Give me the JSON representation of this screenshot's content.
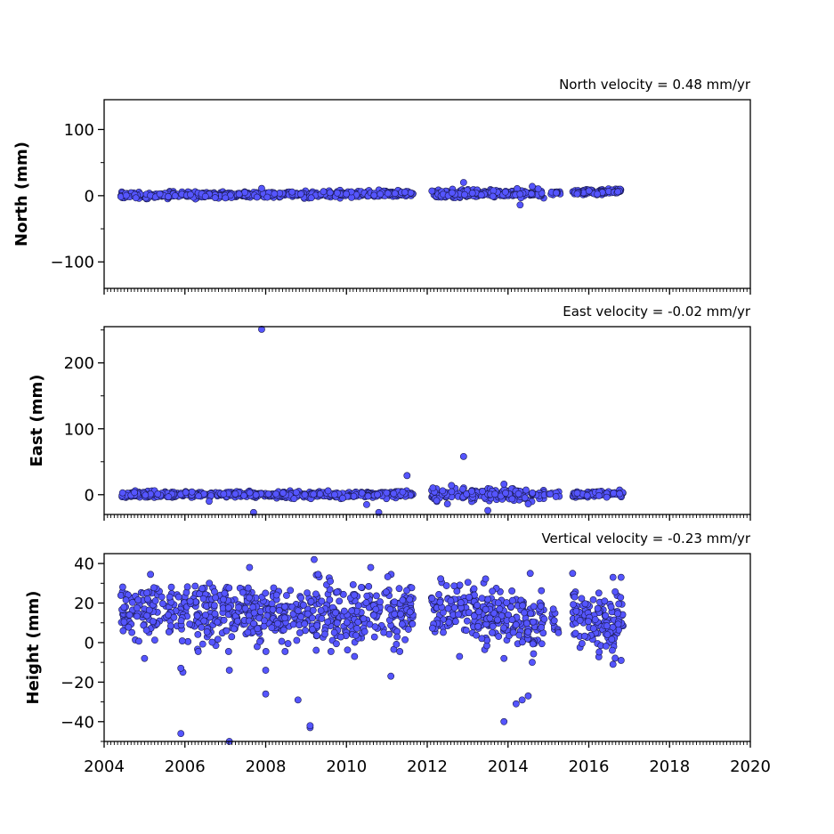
{
  "colors": {
    "marker_fill": "#5555ff",
    "marker_edge": "#1a1a4d",
    "axes": "#000000"
  },
  "x_axis": {
    "range": [
      2004,
      2020
    ],
    "ticks": [
      2004,
      2006,
      2008,
      2010,
      2012,
      2014,
      2016,
      2018,
      2020
    ],
    "tick_labels": [
      "2004",
      "2006",
      "2008",
      "2010",
      "2012",
      "2014",
      "2016",
      "2018",
      "2020"
    ]
  },
  "chart_data": [
    {
      "type": "scatter",
      "title": "North velocity = 0.48 mm/yr",
      "ylabel": "North (mm)",
      "ylim": [
        -140,
        145
      ],
      "yticks": [
        100,
        0,
        -100
      ],
      "ytick_labels": [
        "100",
        "0",
        "−100"
      ],
      "seed": 11,
      "segments": [
        {
          "x": [
            2004.4,
            2011.65
          ],
          "y_start": 0,
          "y_end": 3,
          "spread": 2.3,
          "count": 520
        },
        {
          "x": [
            2012.1,
            2014.9
          ],
          "y_start": 3,
          "y_end": 4,
          "spread": 3,
          "count": 210
        },
        {
          "x": [
            2015.0,
            2015.3
          ],
          "y_start": 3,
          "y_end": 3,
          "spread": 2,
          "count": 10
        },
        {
          "x": [
            2015.6,
            2016.85
          ],
          "y_start": 5,
          "y_end": 7,
          "spread": 2,
          "count": 110
        }
      ],
      "outliers": [
        {
          "x": 2012.9,
          "y": 20
        },
        {
          "x": 2014.3,
          "y": -14
        },
        {
          "x": 2007.9,
          "y": 11
        },
        {
          "x": 2014.6,
          "y": 14
        }
      ]
    },
    {
      "type": "scatter",
      "title": "East velocity = -0.02 mm/yr",
      "ylabel": "East (mm)",
      "ylim": [
        -30,
        255
      ],
      "yticks": [
        200,
        100,
        0
      ],
      "ytick_labels": [
        "200",
        "100",
        "0"
      ],
      "seed": 23,
      "segments": [
        {
          "x": [
            2004.4,
            2011.65
          ],
          "y_start": 0,
          "y_end": 0,
          "spread": 2.3,
          "count": 520
        },
        {
          "x": [
            2012.1,
            2014.9
          ],
          "y_start": 0,
          "y_end": 0,
          "spread": 4,
          "count": 210
        },
        {
          "x": [
            2015.0,
            2015.3
          ],
          "y_start": 0,
          "y_end": 0,
          "spread": 2,
          "count": 10
        },
        {
          "x": [
            2015.6,
            2016.85
          ],
          "y_start": 0,
          "y_end": 2,
          "spread": 2,
          "count": 110
        }
      ],
      "outliers": [
        {
          "x": 2007.9,
          "y": 251
        },
        {
          "x": 2012.9,
          "y": 58
        },
        {
          "x": 2011.5,
          "y": 29
        },
        {
          "x": 2007.7,
          "y": -27
        },
        {
          "x": 2010.8,
          "y": -27
        },
        {
          "x": 2013.5,
          "y": -24
        },
        {
          "x": 2012.6,
          "y": 14
        },
        {
          "x": 2013.9,
          "y": 16
        },
        {
          "x": 2006.6,
          "y": -10
        },
        {
          "x": 2010.5,
          "y": -15
        },
        {
          "x": 2014.5,
          "y": -14
        },
        {
          "x": 2012.5,
          "y": -14
        }
      ]
    },
    {
      "type": "scatter",
      "title": "Vertical velocity = -0.23 mm/yr",
      "ylabel": "Height (mm)",
      "ylim": [
        -50,
        45
      ],
      "yticks": [
        40,
        20,
        0,
        -20,
        -40
      ],
      "ytick_labels": [
        "40",
        "20",
        "0",
        "−20",
        "−40"
      ],
      "seed": 37,
      "segments": [
        {
          "x": [
            2004.4,
            2011.65
          ],
          "y_start": 15,
          "y_end": 15,
          "spread": 7.5,
          "count": 620
        },
        {
          "x": [
            2012.1,
            2014.9
          ],
          "y_start": 18,
          "y_end": 10,
          "spread": 7,
          "count": 250
        },
        {
          "x": [
            2015.0,
            2015.3
          ],
          "y_start": 10,
          "y_end": 10,
          "spread": 5,
          "count": 12
        },
        {
          "x": [
            2015.6,
            2016.85
          ],
          "y_start": 12,
          "y_end": 10,
          "spread": 7,
          "count": 130
        }
      ],
      "outliers": [
        {
          "x": 2005.9,
          "y": -46
        },
        {
          "x": 2007.1,
          "y": -50
        },
        {
          "x": 2009.1,
          "y": -43
        },
        {
          "x": 2009.1,
          "y": -42
        },
        {
          "x": 2008.8,
          "y": -29
        },
        {
          "x": 2008.0,
          "y": -26
        },
        {
          "x": 2005.95,
          "y": -15
        },
        {
          "x": 2005.9,
          "y": -13
        },
        {
          "x": 2008.0,
          "y": -14
        },
        {
          "x": 2007.1,
          "y": -14
        },
        {
          "x": 2011.1,
          "y": -17
        },
        {
          "x": 2013.9,
          "y": -40
        },
        {
          "x": 2014.2,
          "y": -31
        },
        {
          "x": 2014.35,
          "y": -29
        },
        {
          "x": 2014.5,
          "y": -27
        },
        {
          "x": 2009.2,
          "y": 42
        },
        {
          "x": 2007.6,
          "y": 38
        },
        {
          "x": 2010.6,
          "y": 38
        },
        {
          "x": 2015.6,
          "y": 35
        },
        {
          "x": 2016.6,
          "y": 33
        },
        {
          "x": 2016.8,
          "y": 33
        },
        {
          "x": 2014.55,
          "y": 35
        },
        {
          "x": 2013.9,
          "y": -8
        },
        {
          "x": 2014.6,
          "y": -10
        },
        {
          "x": 2016.6,
          "y": -11
        },
        {
          "x": 2016.8,
          "y": -9
        },
        {
          "x": 2005.0,
          "y": -8
        },
        {
          "x": 2010.2,
          "y": -7
        },
        {
          "x": 2012.8,
          "y": -7
        }
      ]
    }
  ]
}
